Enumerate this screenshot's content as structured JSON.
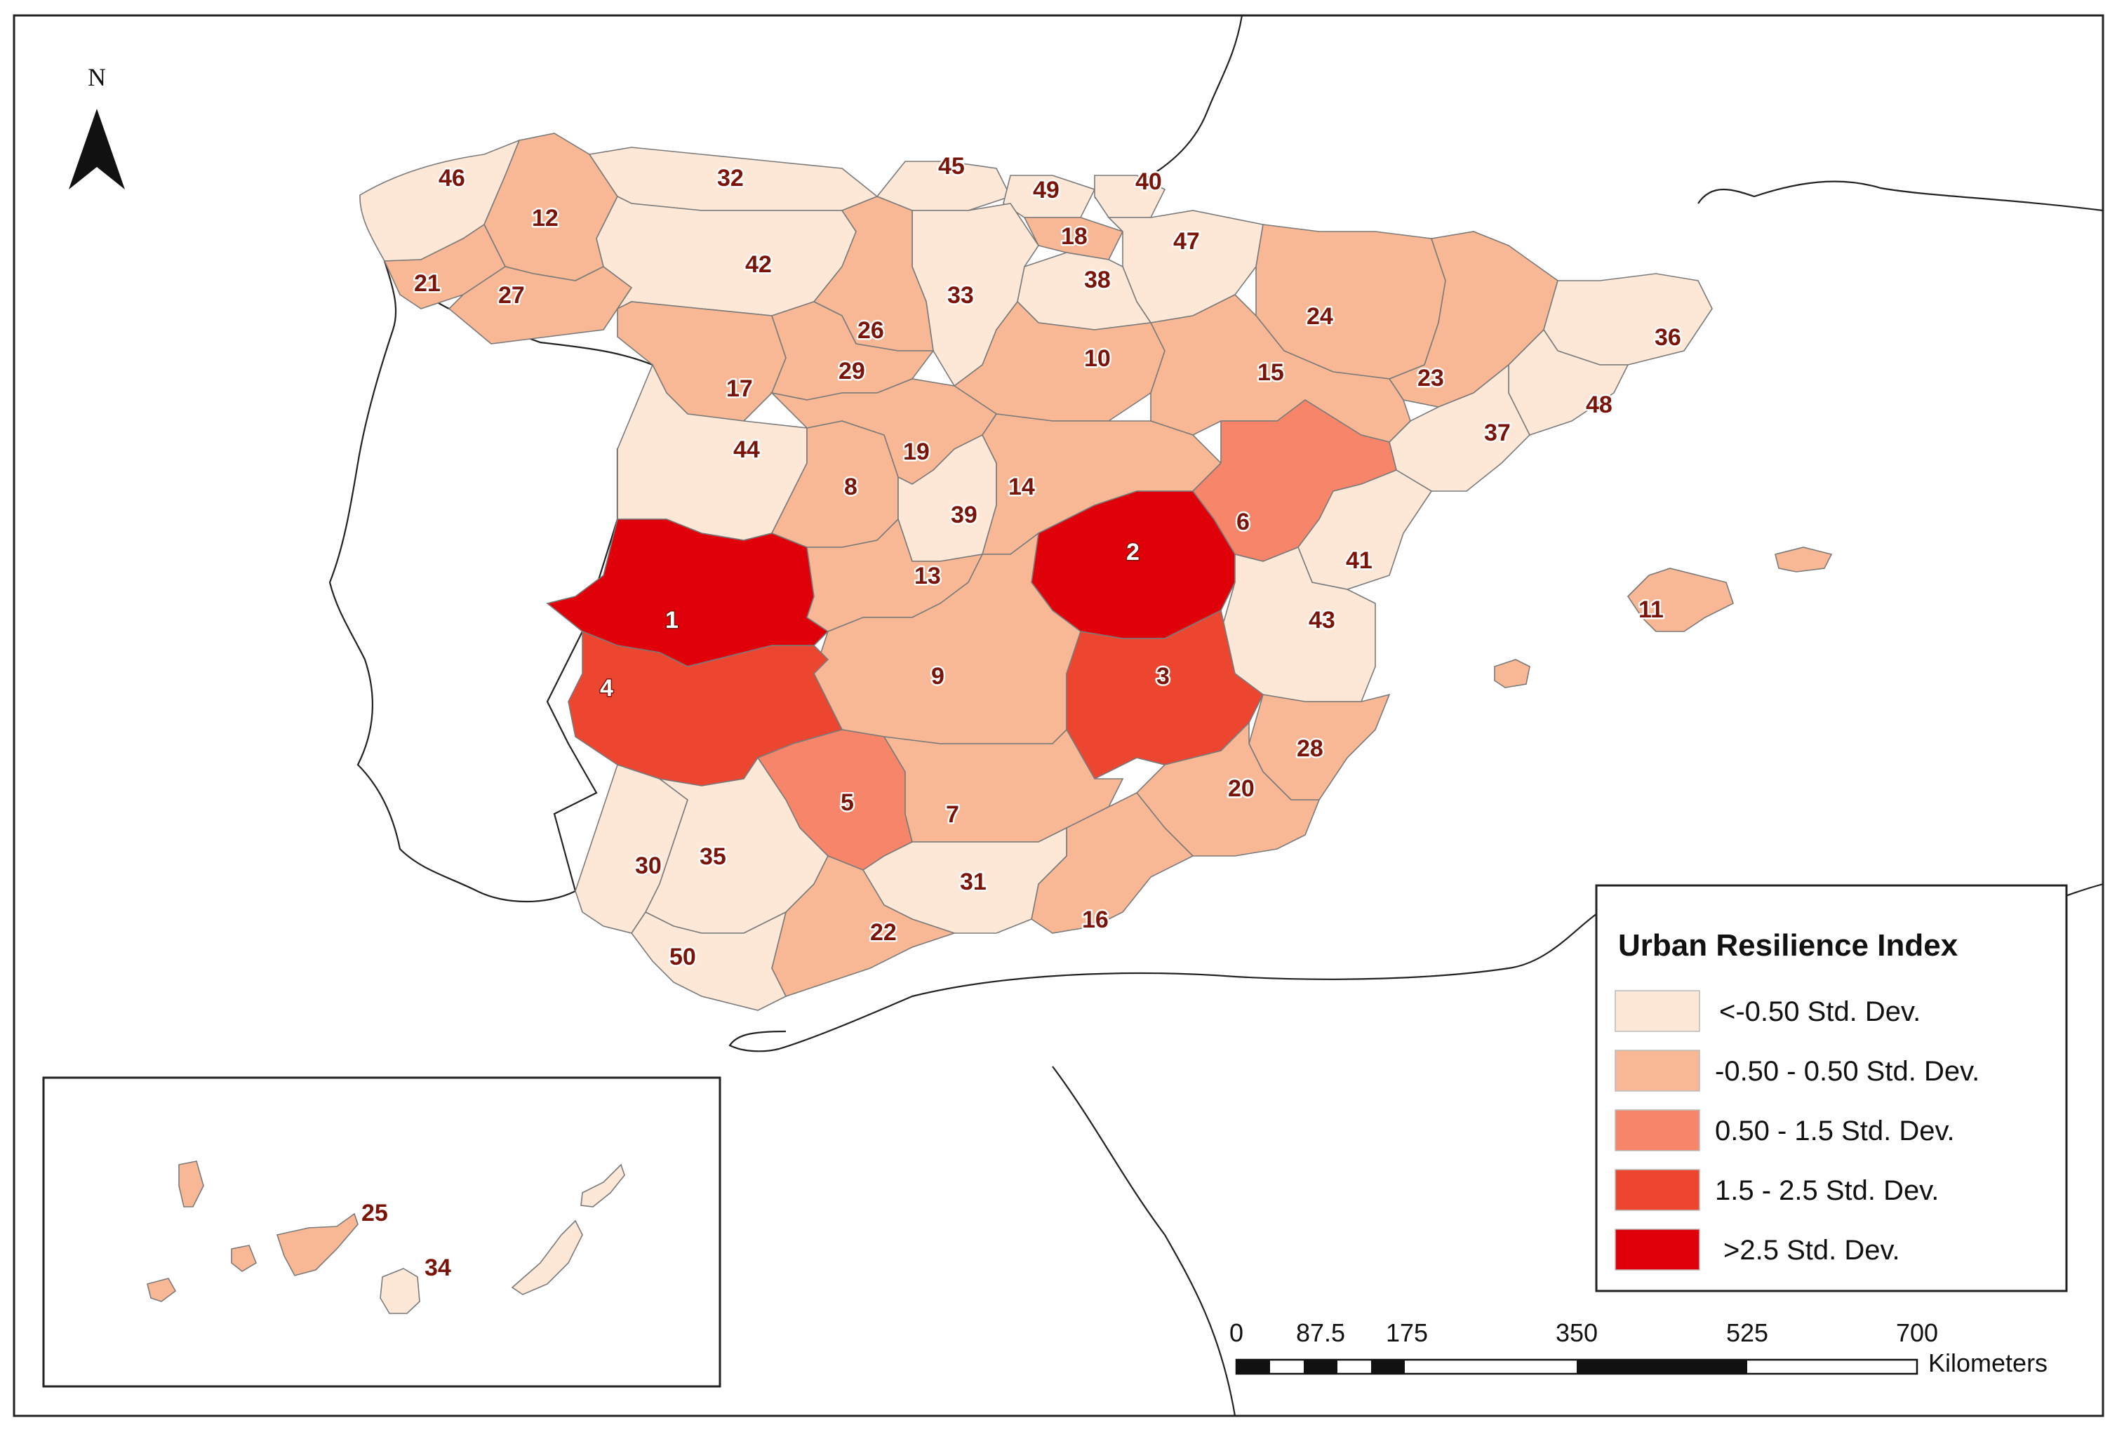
{
  "map": {
    "legend": {
      "title": "Urban Resilience Index",
      "classes": [
        {
          "label": "<-0.50 Std. Dev.",
          "color": "#fde8d8"
        },
        {
          "label": "-0.50 - 0.50 Std. Dev.",
          "color": "#f9b895"
        },
        {
          "label": "0.50 - 1.5 Std. Dev.",
          "color": "#f6856a"
        },
        {
          "label": "1.5 - 2.5 Std. Dev.",
          "color": "#ec4530"
        },
        {
          "label": ">2.5 Std. Dev.",
          "color": "#e0000a"
        }
      ]
    },
    "north_arrow": {
      "label": "N"
    },
    "scale_bar": {
      "ticks": [
        "0",
        "87.5",
        "175",
        "350",
        "525",
        "700"
      ],
      "unit": "Kilometers"
    },
    "provinces": [
      {
        "id": "1",
        "class": 4
      },
      {
        "id": "2",
        "class": 4
      },
      {
        "id": "3",
        "class": 3
      },
      {
        "id": "4",
        "class": 3
      },
      {
        "id": "5",
        "class": 2
      },
      {
        "id": "6",
        "class": 2
      },
      {
        "id": "7",
        "class": 1
      },
      {
        "id": "8",
        "class": 1
      },
      {
        "id": "9",
        "class": 1
      },
      {
        "id": "10",
        "class": 1
      },
      {
        "id": "11",
        "class": 1
      },
      {
        "id": "12",
        "class": 1
      },
      {
        "id": "13",
        "class": 1
      },
      {
        "id": "14",
        "class": 1
      },
      {
        "id": "15",
        "class": 1
      },
      {
        "id": "16",
        "class": 1
      },
      {
        "id": "17",
        "class": 1
      },
      {
        "id": "18",
        "class": 1
      },
      {
        "id": "19",
        "class": 1
      },
      {
        "id": "20",
        "class": 1
      },
      {
        "id": "21",
        "class": 1
      },
      {
        "id": "22",
        "class": 1
      },
      {
        "id": "23",
        "class": 1
      },
      {
        "id": "24",
        "class": 1
      },
      {
        "id": "25",
        "class": 1
      },
      {
        "id": "26",
        "class": 1
      },
      {
        "id": "27",
        "class": 1
      },
      {
        "id": "28",
        "class": 1
      },
      {
        "id": "29",
        "class": 1
      },
      {
        "id": "30",
        "class": 0
      },
      {
        "id": "31",
        "class": 0
      },
      {
        "id": "32",
        "class": 0
      },
      {
        "id": "33",
        "class": 0
      },
      {
        "id": "34",
        "class": 0
      },
      {
        "id": "35",
        "class": 0
      },
      {
        "id": "36",
        "class": 0
      },
      {
        "id": "37",
        "class": 0
      },
      {
        "id": "38",
        "class": 0
      },
      {
        "id": "39",
        "class": 0
      },
      {
        "id": "40",
        "class": 0
      },
      {
        "id": "41",
        "class": 0
      },
      {
        "id": "42",
        "class": 0
      },
      {
        "id": "43",
        "class": 0
      },
      {
        "id": "44",
        "class": 0
      },
      {
        "id": "45",
        "class": 0
      },
      {
        "id": "46",
        "class": 0
      },
      {
        "id": "47",
        "class": 0
      },
      {
        "id": "48",
        "class": 0
      },
      {
        "id": "49",
        "class": 0
      },
      {
        "id": "50",
        "class": 0
      }
    ]
  }
}
